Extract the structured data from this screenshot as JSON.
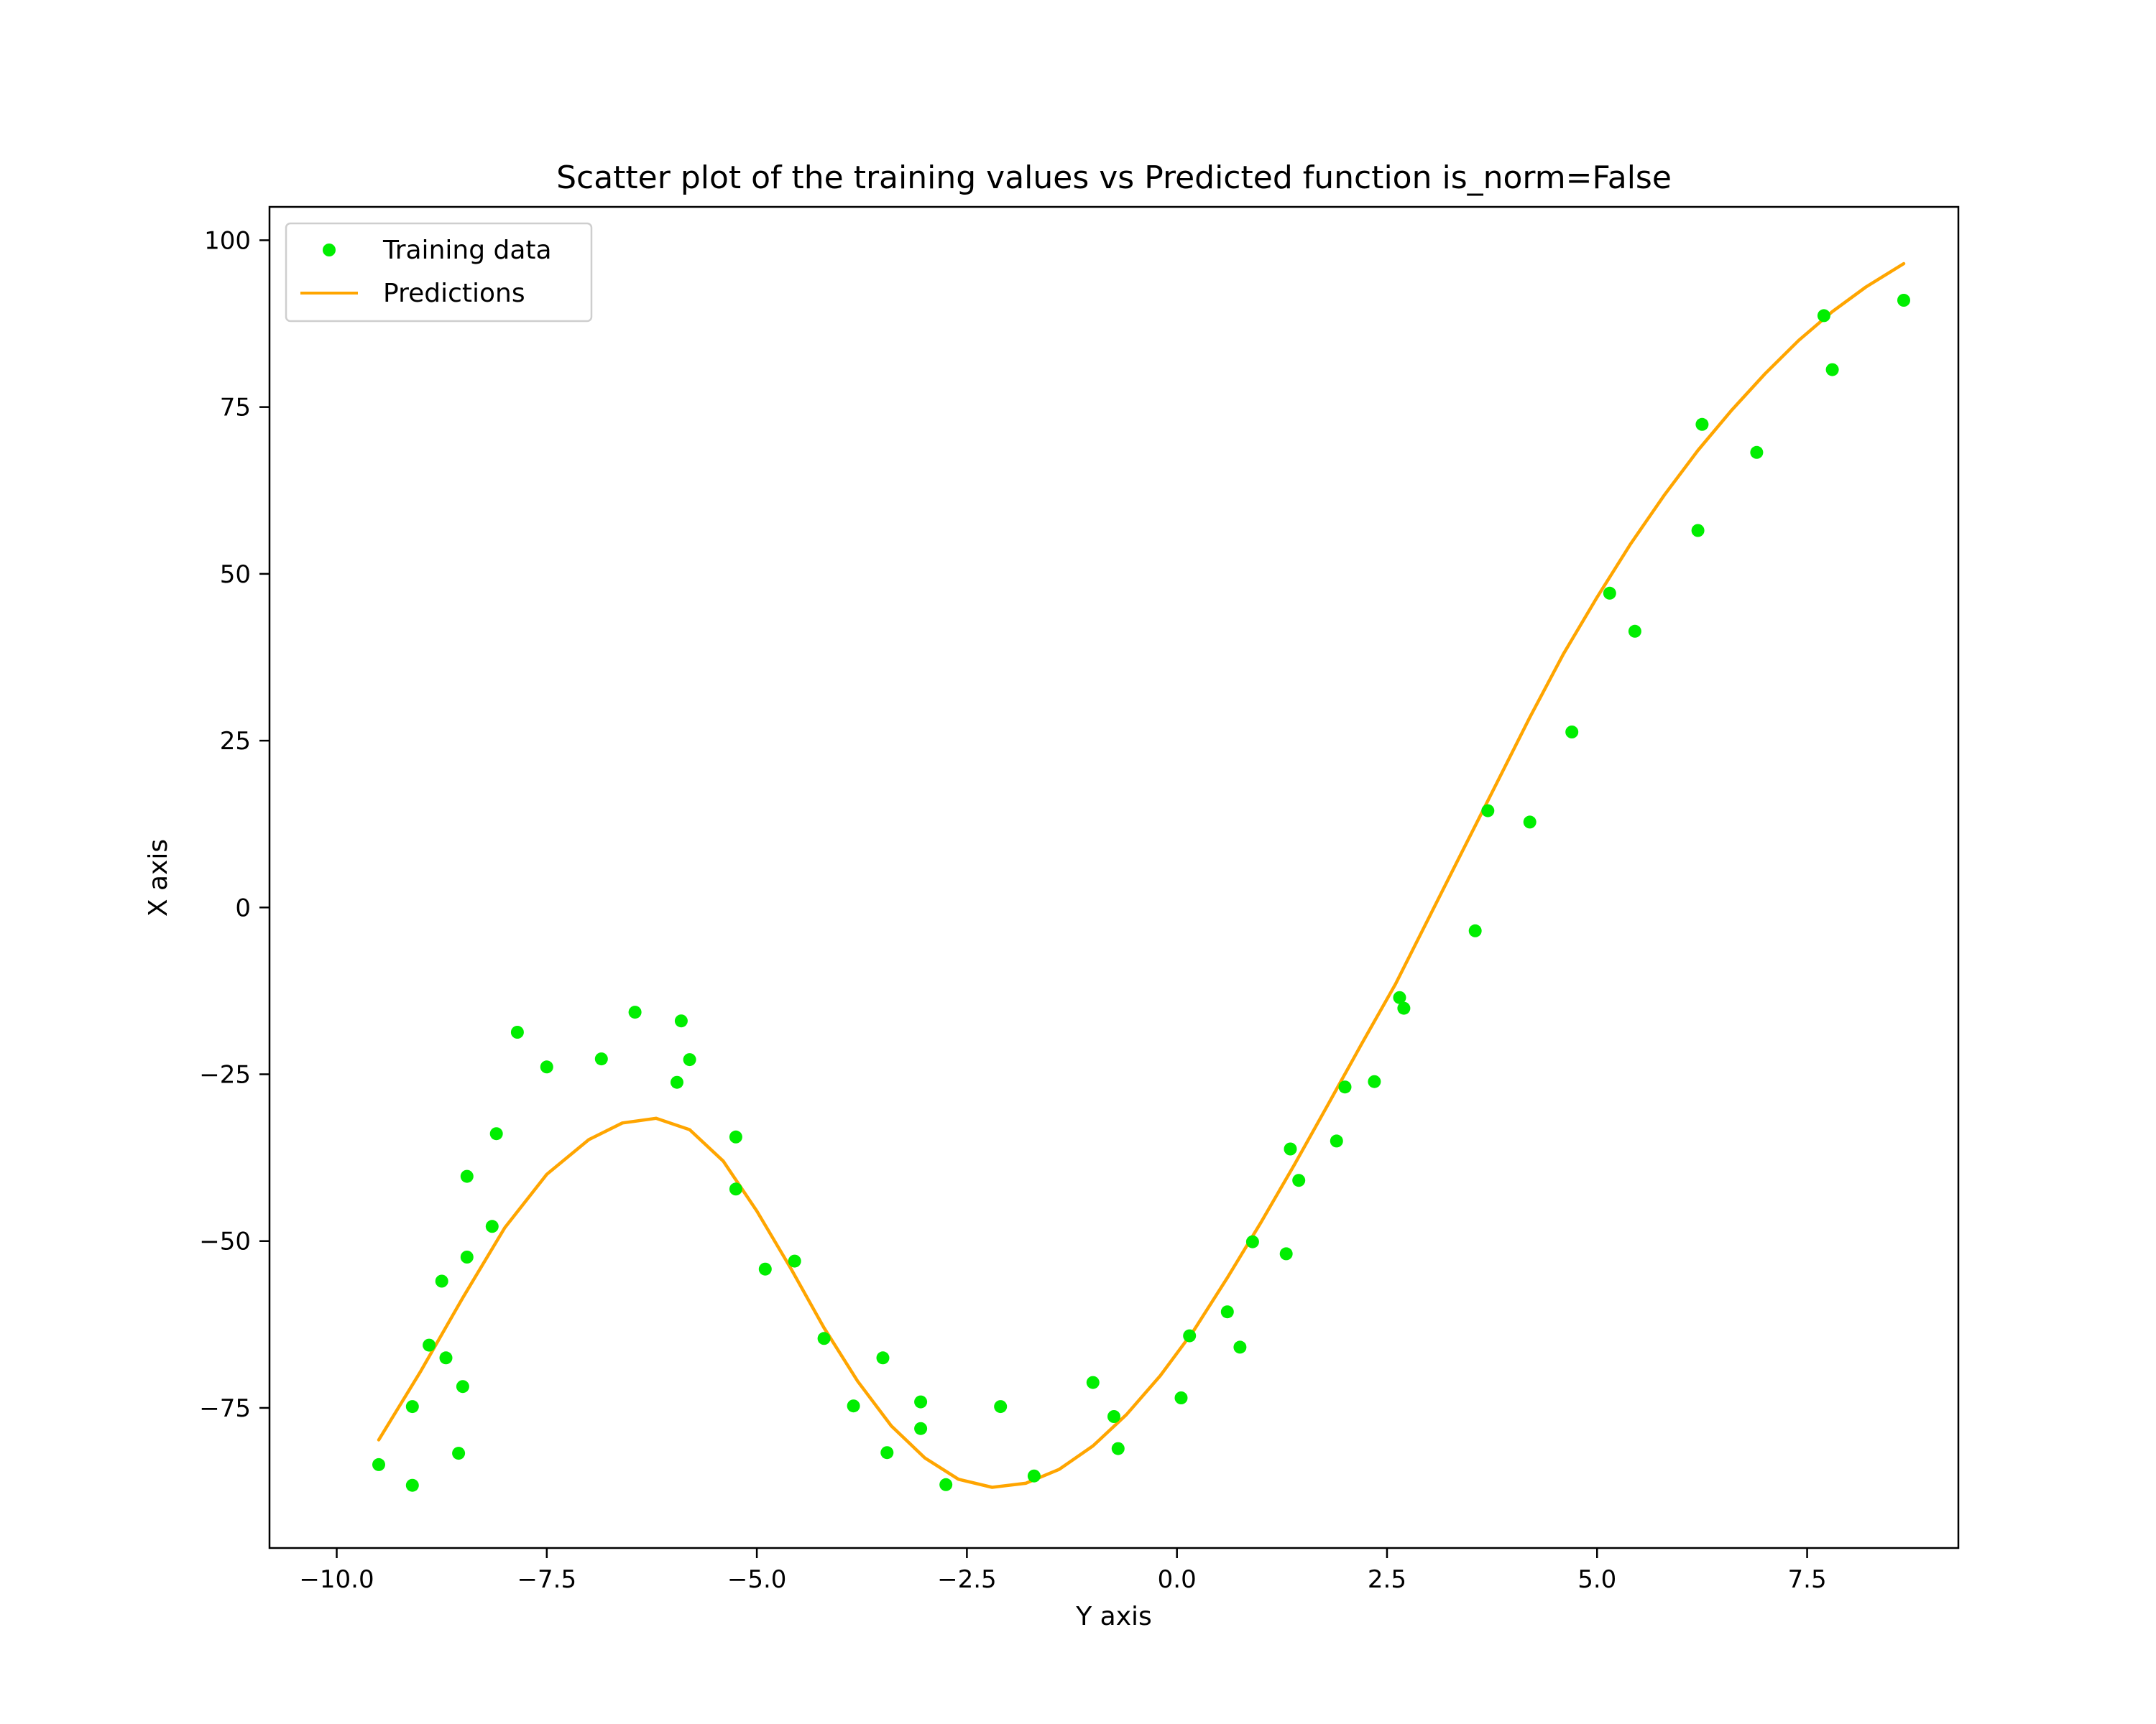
{
  "chart_data": {
    "type": "scatter",
    "title": "Scatter plot of the training values vs Predicted function is_norm=False",
    "xlabel": "Y axis",
    "ylabel": "X axis",
    "xlim": [
      -10.8,
      9.3
    ],
    "ylim": [
      -96,
      105
    ],
    "xticks": [
      -10.0,
      -7.5,
      -5.0,
      -2.5,
      0.0,
      2.5,
      5.0,
      7.5
    ],
    "xtick_labels": [
      "−10.0",
      "−7.5",
      "−5.0",
      "−2.5",
      "0.0",
      "2.5",
      "5.0",
      "7.5"
    ],
    "yticks": [
      -75,
      -50,
      -25,
      0,
      25,
      50,
      75,
      100
    ],
    "ytick_labels": [
      "−75",
      "−50",
      "−25",
      "0",
      "25",
      "50",
      "75",
      "100"
    ],
    "grid": false,
    "legend": {
      "placement": "top-left",
      "entries": [
        {
          "label": "Training data",
          "type": "marker",
          "color": "#00ee00"
        },
        {
          "label": "Predictions",
          "type": "line",
          "color": "#ffa500"
        }
      ]
    },
    "series": [
      {
        "name": "Training data",
        "type": "scatter",
        "color": "#00ee00",
        "points": [
          [
            -9.5,
            -83.5
          ],
          [
            -9.1,
            -74.8
          ],
          [
            -9.1,
            -86.6
          ],
          [
            -8.9,
            -65.6
          ],
          [
            -8.75,
            -56.0
          ],
          [
            -8.7,
            -67.5
          ],
          [
            -8.55,
            -81.8
          ],
          [
            -8.5,
            -71.8
          ],
          [
            -8.45,
            -52.4
          ],
          [
            -8.45,
            -40.3
          ],
          [
            -8.15,
            -47.8
          ],
          [
            -8.1,
            -33.9
          ],
          [
            -7.85,
            -18.7
          ],
          [
            -7.5,
            -23.9
          ],
          [
            -6.85,
            -22.7
          ],
          [
            -6.45,
            -15.7
          ],
          [
            -5.95,
            -26.2
          ],
          [
            -5.9,
            -17.0
          ],
          [
            -5.8,
            -22.8
          ],
          [
            -5.25,
            -34.4
          ],
          [
            -5.25,
            -42.2
          ],
          [
            -4.9,
            -54.2
          ],
          [
            -4.55,
            -53.0
          ],
          [
            -4.2,
            -64.6
          ],
          [
            -3.85,
            -74.7
          ],
          [
            -3.5,
            -67.5
          ],
          [
            -3.45,
            -81.7
          ],
          [
            -3.05,
            -74.1
          ],
          [
            -3.05,
            -78.1
          ],
          [
            -2.75,
            -86.5
          ],
          [
            -2.1,
            -74.8
          ],
          [
            -1.7,
            -85.2
          ],
          [
            -1.0,
            -71.2
          ],
          [
            -0.75,
            -76.3
          ],
          [
            -0.7,
            -81.1
          ],
          [
            0.05,
            -73.5
          ],
          [
            0.15,
            -64.2
          ],
          [
            0.6,
            -60.6
          ],
          [
            0.75,
            -65.9
          ],
          [
            0.9,
            -50.1
          ],
          [
            1.3,
            -51.9
          ],
          [
            1.35,
            -36.2
          ],
          [
            1.45,
            -40.9
          ],
          [
            1.9,
            -35.0
          ],
          [
            2.0,
            -26.9
          ],
          [
            2.35,
            -26.1
          ],
          [
            2.65,
            -13.5
          ],
          [
            2.7,
            -15.1
          ],
          [
            3.55,
            -3.5
          ],
          [
            3.7,
            14.5
          ],
          [
            4.2,
            12.8
          ],
          [
            4.7,
            26.3
          ],
          [
            5.15,
            47.1
          ],
          [
            5.45,
            41.4
          ],
          [
            6.2,
            56.5
          ],
          [
            6.25,
            72.4
          ],
          [
            6.9,
            68.2
          ],
          [
            7.7,
            88.7
          ],
          [
            7.8,
            80.6
          ],
          [
            8.65,
            91.0
          ]
        ]
      },
      {
        "name": "Predictions",
        "type": "line",
        "color": "#ffa500",
        "points": [
          [
            -9.5,
            -79.8
          ],
          [
            -9.0,
            -69.5
          ],
          [
            -8.5,
            -58.5
          ],
          [
            -8.0,
            -48.0
          ],
          [
            -7.5,
            -40.0
          ],
          [
            -7.0,
            -34.8
          ],
          [
            -6.6,
            -32.3
          ],
          [
            -6.2,
            -31.6
          ],
          [
            -5.8,
            -33.3
          ],
          [
            -5.4,
            -38.0
          ],
          [
            -5.0,
            -45.5
          ],
          [
            -4.6,
            -54.0
          ],
          [
            -4.2,
            -63.0
          ],
          [
            -3.8,
            -71.0
          ],
          [
            -3.4,
            -77.7
          ],
          [
            -3.0,
            -82.5
          ],
          [
            -2.6,
            -85.7
          ],
          [
            -2.2,
            -86.9
          ],
          [
            -1.8,
            -86.3
          ],
          [
            -1.4,
            -84.2
          ],
          [
            -1.0,
            -80.7
          ],
          [
            -0.6,
            -76.0
          ],
          [
            -0.2,
            -70.2
          ],
          [
            0.2,
            -63.4
          ],
          [
            0.6,
            -55.5
          ],
          [
            1.0,
            -47.2
          ],
          [
            1.4,
            -38.5
          ],
          [
            1.8,
            -29.5
          ],
          [
            2.2,
            -20.4
          ],
          [
            2.6,
            -11.5
          ],
          [
            3.0,
            -1.5
          ],
          [
            3.4,
            8.5
          ],
          [
            3.8,
            18.5
          ],
          [
            4.2,
            28.5
          ],
          [
            4.6,
            38.0
          ],
          [
            5.0,
            46.5
          ],
          [
            5.4,
            54.5
          ],
          [
            5.8,
            61.8
          ],
          [
            6.2,
            68.5
          ],
          [
            6.6,
            74.5
          ],
          [
            7.0,
            80.0
          ],
          [
            7.4,
            85.0
          ],
          [
            7.8,
            89.3
          ],
          [
            8.2,
            93.0
          ],
          [
            8.65,
            96.5
          ]
        ]
      }
    ]
  }
}
